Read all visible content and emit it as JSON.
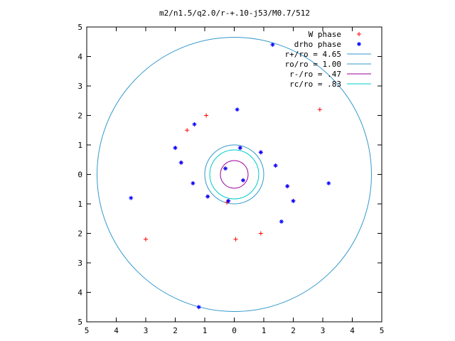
{
  "chart_data": {
    "type": "scatter",
    "title": "m2/n1.5/q2.0/r-+.10-j53/M0.7/512",
    "xlabel": "",
    "ylabel": "",
    "xlim": [
      -5,
      5
    ],
    "ylim": [
      -5,
      5
    ],
    "x_tick_labels": [
      "5",
      "4",
      "3",
      "2",
      "1",
      "0",
      "1",
      "2",
      "3",
      "4",
      "5"
    ],
    "y_tick_labels": [
      "5",
      "4",
      "3",
      "2",
      "1",
      "0",
      "1",
      "2",
      "3",
      "4",
      "5"
    ],
    "grid": false,
    "legend_position": "top-right",
    "legend": [
      {
        "label": "W phase",
        "symbol": "+",
        "color": "#ff0000"
      },
      {
        "label": "drho phase",
        "symbol": "*",
        "color": "#0000ff"
      },
      {
        "label": "r+/ro = 4.65",
        "symbol": "line",
        "color": "#3399cc"
      },
      {
        "label": "ro/ro = 1.00",
        "symbol": "line",
        "color": "#3399cc"
      },
      {
        "label": "r-/ro =  .47",
        "symbol": "line",
        "color": "#990099"
      },
      {
        "label": "rc/ro =  .83",
        "symbol": "line",
        "color": "#00cccc"
      }
    ],
    "circles": [
      {
        "name": "r+/ro = 4.65",
        "radius": 4.65,
        "color": "#3399cc"
      },
      {
        "name": "ro/ro = 1.00",
        "radius": 1.0,
        "color": "#3399cc"
      },
      {
        "name": "r-/ro =  .47",
        "radius": 0.47,
        "color": "#990099"
      },
      {
        "name": "rc/ro =  .83",
        "radius": 0.83,
        "color": "#00cccc"
      }
    ],
    "series": [
      {
        "name": "W phase",
        "symbol": "+",
        "color": "#ff0000",
        "arm_a": [
          [
            -2.0,
            0.9
          ],
          [
            -1.8,
            0.4
          ],
          [
            -1.4,
            -0.3
          ],
          [
            -0.9,
            -0.75
          ],
          [
            -0.2,
            -0.9
          ],
          [
            0.3,
            -0.2
          ]
        ],
        "arm_b": [
          [
            2.0,
            -0.9
          ],
          [
            1.8,
            -0.4
          ],
          [
            1.4,
            0.3
          ],
          [
            0.9,
            0.75
          ],
          [
            0.2,
            0.9
          ],
          [
            -0.3,
            0.2
          ]
        ],
        "scattered": [
          [
            -1.6,
            1.5
          ],
          [
            0.9,
            -2.0
          ],
          [
            -3.0,
            -2.2
          ],
          [
            2.9,
            2.2
          ],
          [
            -0.95,
            2.0
          ],
          [
            0.05,
            -2.2
          ],
          [
            -0.25,
            -0.95
          ]
        ]
      },
      {
        "name": "drho phase",
        "symbol": "*",
        "color": "#0000ff",
        "arm_a": [
          [
            -2.0,
            0.9
          ],
          [
            -1.8,
            0.4
          ],
          [
            -1.4,
            -0.3
          ],
          [
            -0.9,
            -0.75
          ],
          [
            -0.2,
            -0.9
          ],
          [
            0.3,
            -0.2
          ]
        ],
        "arm_b": [
          [
            2.0,
            -0.9
          ],
          [
            1.8,
            -0.4
          ],
          [
            1.4,
            0.3
          ],
          [
            0.9,
            0.75
          ],
          [
            0.2,
            0.9
          ],
          [
            -0.3,
            0.2
          ]
        ],
        "scattered": [
          [
            -1.35,
            1.7
          ],
          [
            0.1,
            2.2
          ],
          [
            1.6,
            -1.6
          ],
          [
            -3.5,
            -0.8
          ],
          [
            3.2,
            -0.3
          ],
          [
            -1.2,
            -4.5
          ],
          [
            1.3,
            4.4
          ]
        ]
      }
    ]
  }
}
